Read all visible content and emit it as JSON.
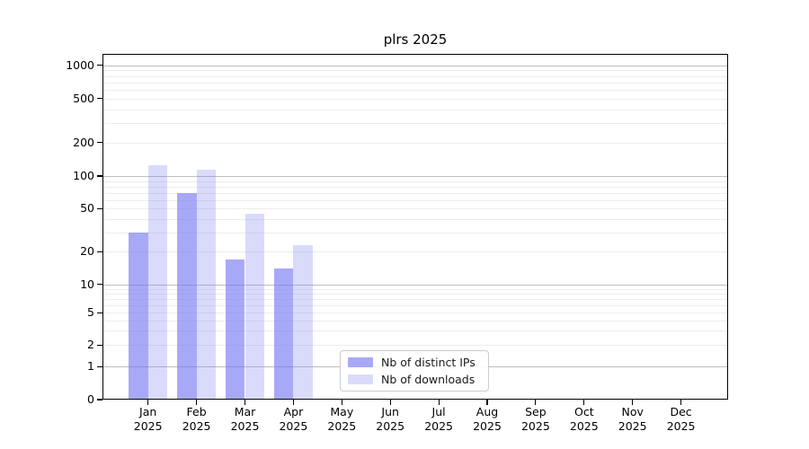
{
  "chart_data": {
    "type": "bar",
    "title": "plrs 2025",
    "categories": [
      "Jan 2025",
      "Feb 2025",
      "Mar 2025",
      "Apr 2025",
      "May 2025",
      "Jun 2025",
      "Jul 2025",
      "Aug 2025",
      "Sep 2025",
      "Oct 2025",
      "Nov 2025",
      "Dec 2025"
    ],
    "series": [
      {
        "name": "Nb of distinct IPs",
        "color": "rgba(123,124,242,0.66)",
        "apparent_color": "#a9aaf7",
        "values": [
          30,
          69,
          17,
          14,
          null,
          null,
          null,
          null,
          null,
          null,
          null,
          null
        ]
      },
      {
        "name": "Nb of downloads",
        "color": "rgba(123,124,242,0.28)",
        "apparent_color": "#dcdcfa",
        "values": [
          125,
          113,
          45,
          23,
          null,
          null,
          null,
          null,
          null,
          null,
          null,
          null
        ]
      }
    ],
    "y_ticks": [
      0,
      1,
      2,
      5,
      10,
      20,
      50,
      100,
      200,
      500,
      1000
    ],
    "ylim": [
      0,
      1250
    ],
    "xlabel": "",
    "ylabel": "",
    "scale": "symlog",
    "grid": "horizontal",
    "legend_position": "inside-bottom-center",
    "colors": {
      "grid_major": "#bdbdbd",
      "grid_minor": "#ececec",
      "axis": "#000000",
      "text": "#000000"
    }
  }
}
